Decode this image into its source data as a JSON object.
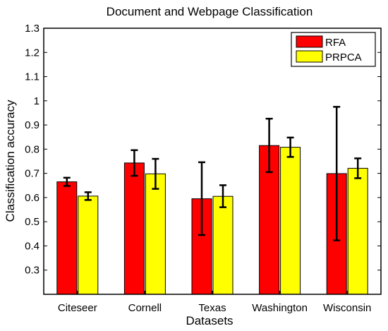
{
  "chart_data": {
    "type": "bar",
    "title": "Document and Webpage Classification",
    "xlabel": "Datasets",
    "ylabel": "Classification accuracy",
    "categories": [
      "Citeseer",
      "Cornell",
      "Texas",
      "Washington",
      "Wisconsin"
    ],
    "series": [
      {
        "name": "RFA",
        "color": "#ff0000",
        "values": [
          0.665,
          0.743,
          0.595,
          0.815,
          0.699
        ],
        "error_low": [
          0.648,
          0.69,
          0.445,
          0.705,
          0.423
        ],
        "error_high": [
          0.682,
          0.796,
          0.746,
          0.926,
          0.975
        ]
      },
      {
        "name": "PRPCA",
        "color": "#ffff00",
        "values": [
          0.606,
          0.698,
          0.605,
          0.808,
          0.721
        ],
        "error_low": [
          0.59,
          0.636,
          0.56,
          0.768,
          0.68
        ],
        "error_high": [
          0.622,
          0.76,
          0.651,
          0.848,
          0.762
        ]
      }
    ],
    "ylim": [
      0.2,
      1.3
    ],
    "yticks": [
      0.3,
      0.4,
      0.5,
      0.6,
      0.7,
      0.8,
      0.9,
      1,
      1.1,
      1.2,
      1.3
    ],
    "grid": false,
    "legend_position": "top-right"
  }
}
